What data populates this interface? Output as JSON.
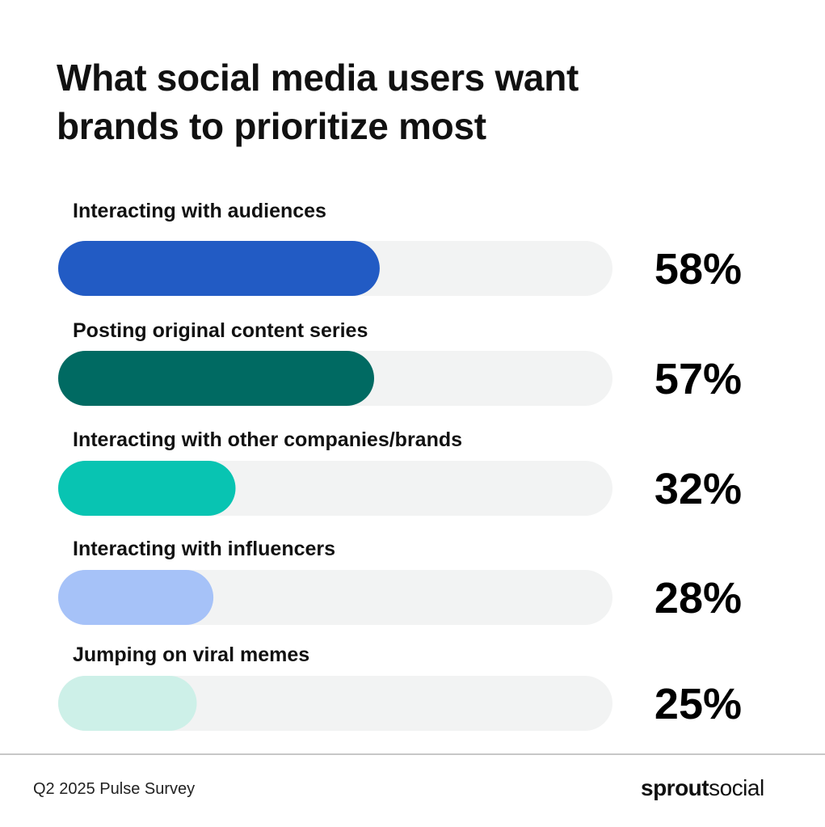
{
  "title_lines": [
    "What social media users want",
    "brands to prioritize most"
  ],
  "chart_data": {
    "type": "bar",
    "orientation": "horizontal",
    "categories": [
      "Interacting with audiences",
      "Posting original content series",
      "Interacting with other companies/brands",
      "Interacting with influencers",
      "Jumping on viral memes"
    ],
    "values": [
      58,
      57,
      32,
      28,
      25
    ],
    "value_labels": [
      "58%",
      "57%",
      "32%",
      "28%",
      "25%"
    ],
    "bar_colors": [
      "#225bc4",
      "#006a62",
      "#08c4b2",
      "#a6c2f8",
      "#cdf0e8"
    ],
    "track_color": "#f2f3f3",
    "xlim": [
      0,
      100
    ],
    "grid": false,
    "legend": "none",
    "axes_visible": false
  },
  "footer": {
    "source": "Q2 2025 Pulse Survey",
    "brand_bold": "sprout",
    "brand_regular": "social"
  }
}
